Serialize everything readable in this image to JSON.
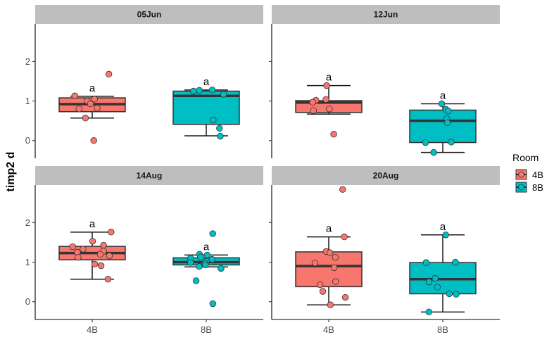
{
  "chart_data": {
    "type": "boxplot",
    "ylabel": "timp2 d",
    "xlabel": "",
    "categories": [
      "4B",
      "8B"
    ],
    "ylim": [
      -0.45,
      2.95
    ],
    "yticks": [
      0,
      1,
      2
    ],
    "legend": {
      "title": "Room",
      "position": "right",
      "entries": [
        {
          "label": "4B",
          "color": "#F8766D"
        },
        {
          "label": "8B",
          "color": "#00BFC4"
        }
      ]
    },
    "colors": {
      "4B": "#F8766D",
      "8B": "#00BFC4",
      "strip": "#BEBEBE"
    },
    "panels": [
      {
        "title": "05Jun",
        "groups": [
          {
            "room": "4B",
            "min": 0.57,
            "q1": 0.73,
            "median": 0.92,
            "q3": 1.08,
            "max": 1.12,
            "letter": "a",
            "points": [
              1.68,
              1.13,
              1.05,
              1.0,
              0.93,
              0.82,
              0.8,
              0.57,
              0.0
            ]
          },
          {
            "room": "8B",
            "min": 0.12,
            "q1": 0.41,
            "median": 1.13,
            "q3": 1.25,
            "max": 1.28,
            "letter": "a",
            "points": [
              1.28,
              1.27,
              1.25,
              1.17,
              0.52,
              0.31,
              0.11
            ]
          }
        ]
      },
      {
        "title": "12Jun",
        "groups": [
          {
            "room": "4B",
            "min": 0.67,
            "q1": 0.71,
            "median": 0.96,
            "q3": 1.01,
            "max": 1.39,
            "letter": "a",
            "points": [
              1.39,
              1.04,
              1.02,
              0.97,
              0.8,
              0.76,
              0.16
            ]
          },
          {
            "room": "8B",
            "min": -0.3,
            "q1": -0.05,
            "median": 0.5,
            "q3": 0.77,
            "max": 0.93,
            "letter": "a",
            "points": [
              0.93,
              0.79,
              0.75,
              0.55,
              0.45,
              -0.04,
              -0.05,
              -0.3
            ]
          }
        ]
      },
      {
        "title": "14Aug",
        "groups": [
          {
            "room": "4B",
            "min": 0.57,
            "q1": 1.06,
            "median": 1.23,
            "q3": 1.4,
            "max": 1.76,
            "letter": "a",
            "points": [
              1.76,
              1.53,
              1.43,
              1.39,
              1.33,
              1.28,
              1.25,
              1.2,
              1.16,
              1.12,
              0.95,
              0.91,
              0.57
            ]
          },
          {
            "room": "8B",
            "min": 0.88,
            "q1": 0.93,
            "median": 1.0,
            "q3": 1.11,
            "max": 1.18,
            "letter": "a",
            "points": [
              1.72,
              1.2,
              1.18,
              1.13,
              1.1,
              1.07,
              1.02,
              0.99,
              0.97,
              0.93,
              0.89,
              0.84,
              0.53,
              -0.05
            ]
          }
        ]
      },
      {
        "title": "20Aug",
        "groups": [
          {
            "room": "4B",
            "min": -0.08,
            "q1": 0.38,
            "median": 0.9,
            "q3": 1.26,
            "max": 1.64,
            "letter": "a",
            "points": [
              2.84,
              1.64,
              1.27,
              1.24,
              1.12,
              0.98,
              0.86,
              0.51,
              0.43,
              0.26,
              0.11,
              -0.08
            ]
          },
          {
            "room": "8B",
            "min": -0.26,
            "q1": 0.2,
            "median": 0.57,
            "q3": 0.99,
            "max": 1.69,
            "letter": "a",
            "points": [
              1.69,
              1.0,
              0.99,
              0.59,
              0.5,
              0.37,
              0.2,
              0.19,
              -0.26
            ]
          }
        ]
      }
    ]
  }
}
